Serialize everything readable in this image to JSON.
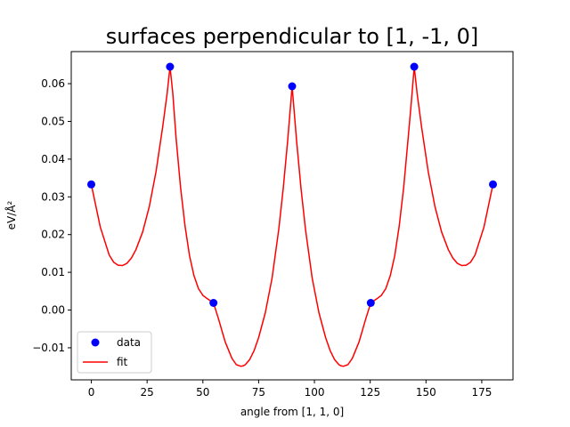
{
  "chart_data": {
    "type": "scatter",
    "title": "surfaces perpendicular to [1, -1, 0]",
    "xlabel": "angle from [1, 1, 0]",
    "ylabel": "eV/Å²",
    "xlim": [
      -9,
      189
    ],
    "ylim": [
      -0.0185,
      0.0685
    ],
    "x_ticks": [
      0,
      25,
      50,
      75,
      100,
      125,
      150,
      175
    ],
    "y_ticks": [
      -0.01,
      0.0,
      0.01,
      0.02,
      0.03,
      0.04,
      0.05,
      0.06
    ],
    "x_tick_labels": [
      "0",
      "25",
      "50",
      "75",
      "100",
      "125",
      "150",
      "175"
    ],
    "y_tick_labels": [
      "−0.01",
      "0.00",
      "0.01",
      "0.02",
      "0.03",
      "0.04",
      "0.05",
      "0.06"
    ],
    "grid": false,
    "legend_position": "lower-left",
    "series": [
      {
        "name": "data",
        "kind": "points",
        "color": "#0000ff",
        "x": [
          0,
          35.26,
          54.74,
          90,
          125.26,
          144.74,
          180
        ],
        "y": [
          0.0333,
          0.0645,
          0.0019,
          0.0593,
          0.0019,
          0.0645,
          0.0333
        ]
      },
      {
        "name": "fit",
        "kind": "line",
        "color": "#ff0000",
        "x": [
          0,
          4,
          8,
          10,
          12,
          14,
          16,
          18,
          20,
          23,
          26,
          29,
          32,
          34,
          35.26,
          36.5,
          38,
          40,
          42,
          44,
          46,
          48,
          50,
          52,
          54.74,
          57,
          60,
          63,
          65,
          67,
          68,
          69,
          71,
          73,
          75,
          78,
          81,
          84,
          86,
          88,
          90,
          92,
          94,
          96,
          99,
          102,
          105,
          107,
          109,
          111,
          112,
          113,
          115,
          117,
          120,
          123,
          125.26,
          128,
          130,
          132,
          134,
          136,
          138,
          140,
          142,
          143.5,
          144.74,
          146,
          148,
          151,
          154,
          157,
          160,
          162,
          164,
          166,
          168,
          170,
          172,
          176,
          180
        ],
        "y": [
          0.0333,
          0.022,
          0.0146,
          0.0127,
          0.0119,
          0.0118,
          0.0124,
          0.0138,
          0.016,
          0.0207,
          0.0275,
          0.0367,
          0.0486,
          0.0575,
          0.0645,
          0.0575,
          0.0456,
          0.0326,
          0.0222,
          0.0144,
          0.0091,
          0.0057,
          0.0039,
          0.003,
          0.0019,
          -0.0023,
          -0.0084,
          -0.0128,
          -0.0145,
          -0.0149,
          -0.0148,
          -0.0145,
          -0.0131,
          -0.0107,
          -0.0073,
          -0.0007,
          0.0085,
          0.0214,
          0.0322,
          0.0449,
          0.0593,
          0.0449,
          0.0322,
          0.0214,
          0.0085,
          -0.0007,
          -0.0073,
          -0.0107,
          -0.0131,
          -0.0145,
          -0.0148,
          -0.0149,
          -0.0145,
          -0.0128,
          -0.0084,
          -0.0023,
          0.0019,
          0.003,
          0.0039,
          0.0057,
          0.0091,
          0.0144,
          0.0222,
          0.0326,
          0.0456,
          0.0555,
          0.0645,
          0.0575,
          0.0486,
          0.0367,
          0.0275,
          0.0207,
          0.016,
          0.0138,
          0.0124,
          0.0118,
          0.0119,
          0.0127,
          0.0146,
          0.022,
          0.0333
        ]
      }
    ]
  }
}
